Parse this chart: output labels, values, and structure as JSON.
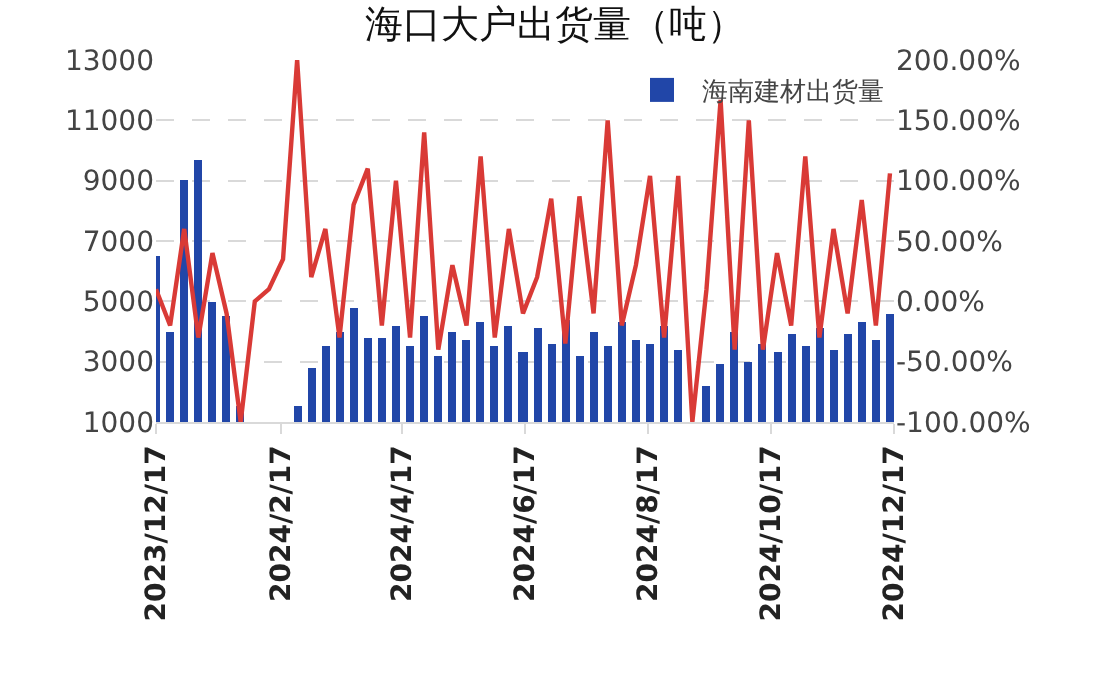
{
  "chart_data": {
    "type": "bar",
    "title": "海口大户出货量（吨）",
    "x": [
      "2023-12-17",
      "2023-12-24",
      "2023-12-31",
      "2024-01-07",
      "2024-01-14",
      "2024-01-21",
      "2024-01-28",
      "2024-02-04",
      "2024-02-11",
      "2024-02-18",
      "2024-02-25",
      "2024-03-03",
      "2024-03-10",
      "2024-03-17",
      "2024-03-24",
      "2024-03-31",
      "2024-04-07",
      "2024-04-14",
      "2024-04-21",
      "2024-04-28",
      "2024-05-05",
      "2024-05-12",
      "2024-05-19",
      "2024-05-26",
      "2024-06-02",
      "2024-06-09",
      "2024-06-16",
      "2024-06-23",
      "2024-06-30",
      "2024-07-07",
      "2024-07-14",
      "2024-07-21",
      "2024-07-28",
      "2024-08-04",
      "2024-08-11",
      "2024-08-18",
      "2024-08-25",
      "2024-09-01",
      "2024-09-08",
      "2024-09-15",
      "2024-09-22",
      "2024-09-29",
      "2024-10-06",
      "2024-10-13",
      "2024-10-20",
      "2024-10-27",
      "2024-11-03",
      "2024-11-10",
      "2024-11-17",
      "2024-11-24",
      "2024-12-01",
      "2024-12-08",
      "2024-12-15"
    ],
    "series": [
      {
        "name": "海南建材出货量",
        "color": "#2146a8",
        "values": [
          6500,
          4000,
          9000,
          9700,
          5000,
          4500,
          1500,
          null,
          null,
          null,
          1500,
          2800,
          3500,
          4000,
          4800,
          3800,
          3800,
          4200,
          3500,
          4500,
          3200,
          4000,
          3700,
          4300,
          3500,
          4200,
          3300,
          4100,
          3600,
          4400,
          3200,
          4000,
          3500,
          4300,
          3700,
          3600,
          4200,
          3400,
          null,
          2200,
          2900,
          4000,
          3000,
          3600,
          3300,
          3900,
          3500,
          4100,
          3400,
          3900,
          4300,
          3700,
          4600
        ]
      },
      {
        "type": "line",
        "axis": "y2",
        "color": "#d93a36",
        "values": [
          10,
          -20,
          60,
          -30,
          40,
          -10,
          -100,
          0,
          10,
          35,
          200,
          20,
          60,
          -30,
          80,
          110,
          -20,
          100,
          -30,
          140,
          -40,
          30,
          -20,
          120,
          -30,
          60,
          -10,
          20,
          85,
          -35,
          87,
          -10,
          150,
          -20,
          30,
          104,
          -30,
          104,
          -100,
          10,
          167,
          -40,
          150,
          -40,
          40,
          -20,
          120,
          -30,
          60,
          -10,
          84,
          -20,
          106
        ]
      }
    ],
    "xlim": [
      "2023-12-17",
      "2024-12-17"
    ],
    "xticks": [
      {
        "value": "2023-12-17",
        "label": "2023/12/17"
      },
      {
        "value": "2024-02-17",
        "label": "2024/2/17"
      },
      {
        "value": "2024-04-17",
        "label": "2024/4/17"
      },
      {
        "value": "2024-06-17",
        "label": "2024/6/17"
      },
      {
        "value": "2024-08-17",
        "label": "2024/8/17"
      },
      {
        "value": "2024-10-17",
        "label": "2024/10/17"
      },
      {
        "value": "2024-12-17",
        "label": "2024/12/17"
      }
    ],
    "ylim": [
      1000,
      13000
    ],
    "yticks": [
      1000,
      3000,
      5000,
      7000,
      9000,
      11000,
      13000
    ],
    "y2lim": [
      -100,
      200
    ],
    "y2ticks": [
      {
        "value": -100,
        "label": "-100.00%"
      },
      {
        "value": -50,
        "label": "-50.00%"
      },
      {
        "value": 0,
        "label": "0.00%"
      },
      {
        "value": 50,
        "label": "50.00%"
      },
      {
        "value": 100,
        "label": "100.00%"
      },
      {
        "value": 150,
        "label": "150.00%"
      },
      {
        "value": 200,
        "label": "200.00%"
      }
    ],
    "grid": "y",
    "legend": "top right"
  }
}
